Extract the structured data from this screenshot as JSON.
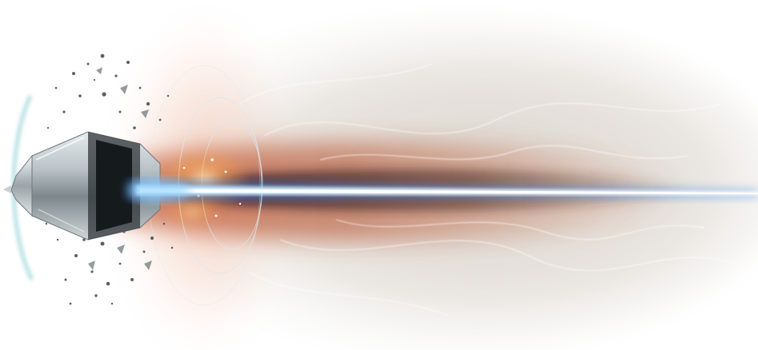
{
  "image": {
    "subject": "waterjet-nozzle-cutting-stream",
    "colors": {
      "background": "#ffffff",
      "paper": "#ece8e3",
      "haze_warm": "#c9603a",
      "haze_dark": "#4a2a22",
      "beam_core": "#eaf6ff",
      "beam_glow": "#3f8be8",
      "nozzle_metal": "#b9c2c6",
      "nozzle_dark": "#2f3438",
      "debris": "#5a6064",
      "ring": "#dbe8ec"
    }
  }
}
